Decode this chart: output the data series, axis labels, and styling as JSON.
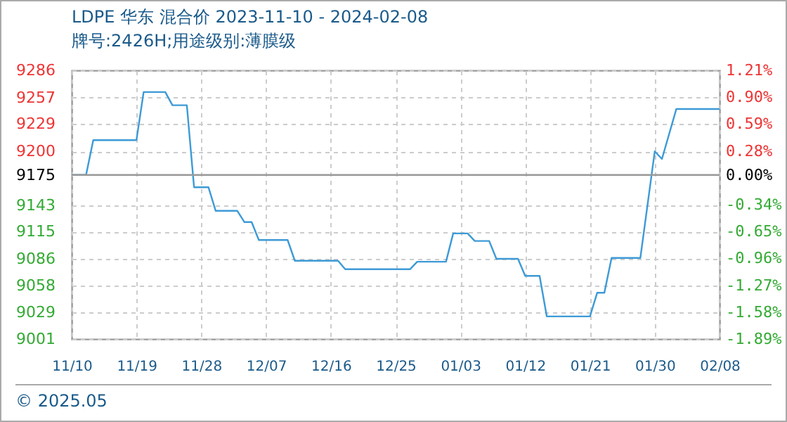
{
  "chart_data": {
    "type": "line",
    "title": "LDPE 华东 混合价 2023-11-10 - 2024-02-08",
    "subtitle": "牌号:2426H;用途级别:薄膜级",
    "x": [
      "2023-11-10",
      "2023-11-12",
      "2023-11-13",
      "2023-11-19",
      "2023-11-20",
      "2023-11-23",
      "2023-11-24",
      "2023-11-26",
      "2023-11-27",
      "2023-11-29",
      "2023-11-30",
      "2023-12-03",
      "2023-12-04",
      "2023-12-05",
      "2023-12-06",
      "2023-12-10",
      "2023-12-11",
      "2023-12-17",
      "2023-12-18",
      "2023-12-27",
      "2023-12-28",
      "2024-01-01",
      "2024-01-02",
      "2024-01-04",
      "2024-01-05",
      "2024-01-07",
      "2024-01-08",
      "2024-01-11",
      "2024-01-12",
      "2024-01-14",
      "2024-01-15",
      "2024-01-21",
      "2024-01-22",
      "2024-01-23",
      "2024-01-24",
      "2024-01-28",
      "2024-01-30",
      "2024-01-31",
      "2024-02-02",
      "2024-02-08"
    ],
    "series": [
      {
        "color": "#3d9ad6",
        "values": [
          9175,
          9175,
          9212,
          9212,
          9263,
          9263,
          9249,
          9249,
          9162,
          9162,
          9137,
          9137,
          9125,
          9125,
          9106,
          9106,
          9084,
          9084,
          9075,
          9075,
          9083,
          9083,
          9113,
          9113,
          9105,
          9105,
          9086,
          9086,
          9068,
          9068,
          9025,
          9025,
          9050,
          9050,
          9087,
          9087,
          9200,
          9192,
          9245,
          9245
        ]
      }
    ],
    "xlim": [
      "2023-11-10",
      "2024-02-08"
    ],
    "xticks": [
      {
        "value": "2023-11-10",
        "label": "11/10"
      },
      {
        "value": "2023-11-19",
        "label": "11/19"
      },
      {
        "value": "2023-11-28",
        "label": "11/28"
      },
      {
        "value": "2023-12-07",
        "label": "12/07"
      },
      {
        "value": "2023-12-16",
        "label": "12/16"
      },
      {
        "value": "2023-12-25",
        "label": "12/25"
      },
      {
        "value": "2024-01-03",
        "label": "01/03"
      },
      {
        "value": "2024-01-12",
        "label": "01/12"
      },
      {
        "value": "2024-01-21",
        "label": "01/21"
      },
      {
        "value": "2024-01-30",
        "label": "01/30"
      },
      {
        "value": "2024-02-08",
        "label": "02/08"
      }
    ],
    "ylim": [
      9001,
      9286
    ],
    "yticks": [
      9001,
      9029,
      9058,
      9086,
      9115,
      9143,
      9175,
      9200,
      9229,
      9257,
      9286
    ],
    "y2lim": [
      -1.89,
      1.21
    ],
    "y2ticks": [
      {
        "value": -1.89,
        "label": "-1.89%"
      },
      {
        "value": -1.58,
        "label": "-1.58%"
      },
      {
        "value": -1.27,
        "label": "-1.27%"
      },
      {
        "value": -0.96,
        "label": "-0.96%"
      },
      {
        "value": -0.65,
        "label": "-0.65%"
      },
      {
        "value": -0.34,
        "label": "-0.34%"
      },
      {
        "value": 0,
        "label": "0.00%"
      },
      {
        "value": 0.28,
        "label": "0.28%"
      },
      {
        "value": 0.59,
        "label": "0.59%"
      },
      {
        "value": 0.9,
        "label": "0.90%"
      },
      {
        "value": 1.21,
        "label": "1.21%"
      }
    ],
    "ref_lines": [
      {
        "axis": "y",
        "value": 9175,
        "color": "#999999"
      }
    ],
    "grid": true,
    "line_style": "solid",
    "annotations": [
      "© 2025.05"
    ]
  }
}
